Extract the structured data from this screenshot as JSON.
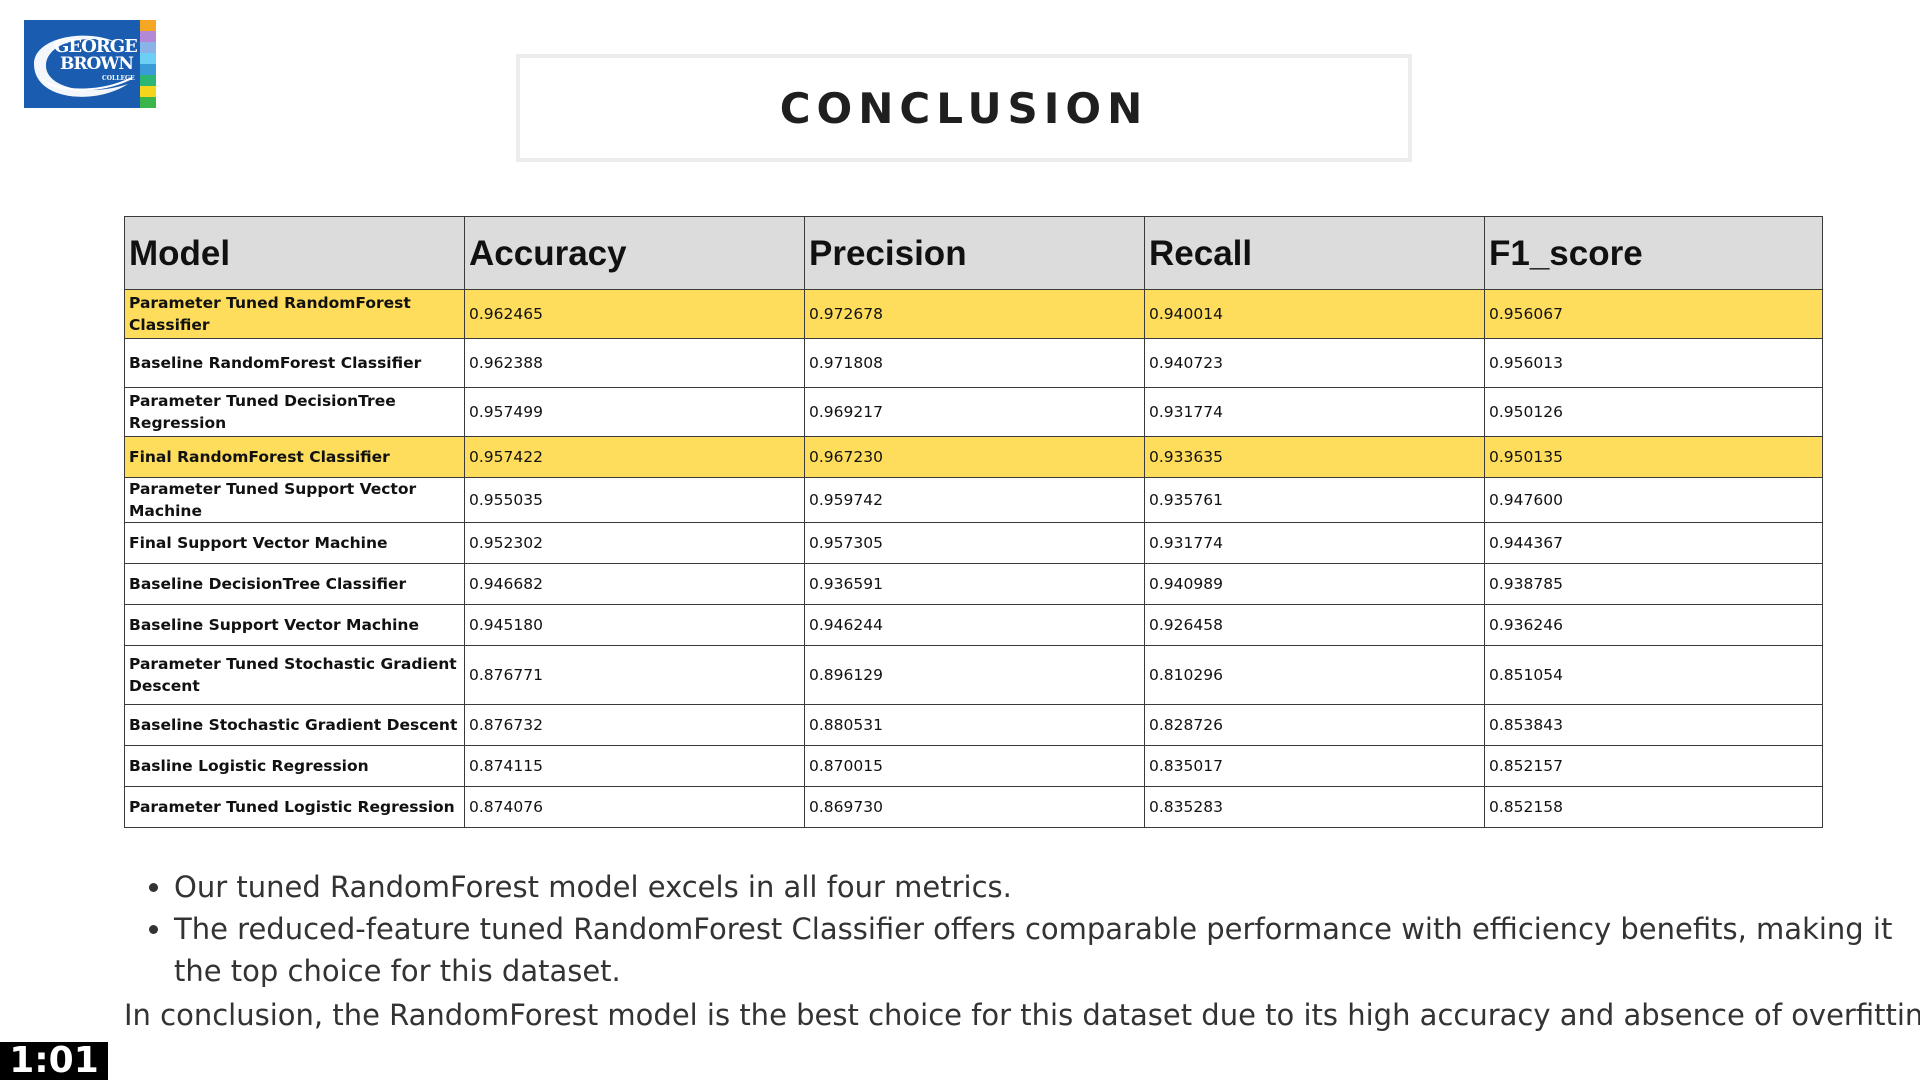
{
  "logo": {
    "line1": "GEORGE",
    "line2": "BROWN",
    "line3": "COLLEGE",
    "colors": {
      "box": "#1a5db0",
      "stripes": [
        "#f5a623",
        "#b388d6",
        "#8ab4e8",
        "#6ecff6",
        "#3a9bd9",
        "#2bb673",
        "#f2d51c",
        "#3ab54a"
      ]
    }
  },
  "title": "CONCLUSION",
  "table": {
    "headers": [
      "Model",
      "Accuracy",
      "Precision",
      "Recall",
      "F1_score"
    ],
    "rows": [
      {
        "model": "Parameter Tuned RandomForest Classifier",
        "accuracy": "0.962465",
        "precision": "0.972678",
        "recall": "0.940014",
        "f1": "0.956067",
        "highlight": true
      },
      {
        "model": "Baseline RandomForest Classifier",
        "accuracy": "0.962388",
        "precision": "0.971808",
        "recall": "0.940723",
        "f1": "0.956013",
        "highlight": false
      },
      {
        "model": "Parameter Tuned DecisionTree Regression",
        "accuracy": "0.957499",
        "precision": "0.969217",
        "recall": "0.931774",
        "f1": "0.950126",
        "highlight": false
      },
      {
        "model": "Final RandomForest Classifier",
        "accuracy": "0.957422",
        "precision": "0.967230",
        "recall": "0.933635",
        "f1": "0.950135",
        "highlight": true
      },
      {
        "model": "Parameter Tuned Support Vector Machine",
        "accuracy": "0.955035",
        "precision": "0.959742",
        "recall": "0.935761",
        "f1": "0.947600",
        "highlight": false
      },
      {
        "model": "Final Support Vector Machine",
        "accuracy": "0.952302",
        "precision": "0.957305",
        "recall": "0.931774",
        "f1": "0.944367",
        "highlight": false
      },
      {
        "model": "Baseline DecisionTree Classifier",
        "accuracy": "0.946682",
        "precision": "0.936591",
        "recall": "0.940989",
        "f1": "0.938785",
        "highlight": false
      },
      {
        "model": "Baseline Support Vector Machine",
        "accuracy": "0.945180",
        "precision": "0.946244",
        "recall": "0.926458",
        "f1": "0.936246",
        "highlight": false
      },
      {
        "model": "Parameter Tuned Stochastic Gradient Descent",
        "accuracy": "0.876771",
        "precision": "0.896129",
        "recall": "0.810296",
        "f1": "0.851054",
        "highlight": false
      },
      {
        "model": "Baseline Stochastic Gradient Descent",
        "accuracy": "0.876732",
        "precision": "0.880531",
        "recall": "0.828726",
        "f1": "0.853843",
        "highlight": false
      },
      {
        "model": "Basline Logistic Regression",
        "accuracy": "0.874115",
        "precision": "0.870015",
        "recall": "0.835017",
        "f1": "0.852157",
        "highlight": false
      },
      {
        "model": "Parameter Tuned Logistic Regression",
        "accuracy": "0.874076",
        "precision": "0.869730",
        "recall": "0.835283",
        "f1": "0.852158",
        "highlight": false
      }
    ],
    "highlight_color": "#fedc5c",
    "header_bg": "#dcdcdc"
  },
  "bullets": [
    "Our tuned RandomForest model excels in all four metrics.",
    "The reduced-feature tuned RandomForest Classifier offers comparable performance with efficiency benefits, making it the top choice for this dataset."
  ],
  "conclusion": "In conclusion, the RandomForest model is the best choice for this dataset due to its high accuracy and absence of overfitting.",
  "timer": "1:01"
}
